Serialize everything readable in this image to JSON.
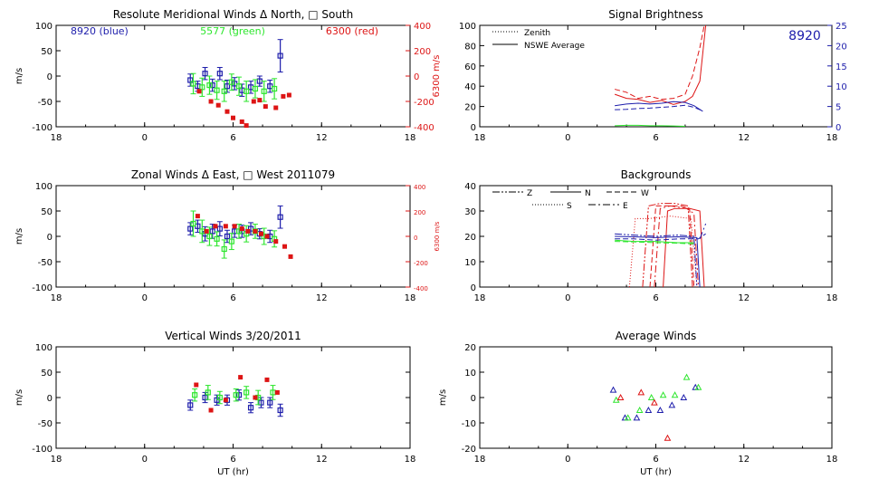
{
  "colors": {
    "blue": "#1d1dab",
    "green": "#2ee62e",
    "red": "#dd1515",
    "black": "#000000"
  },
  "chart_data": [
    {
      "id": "meridional",
      "type": "scatter",
      "title": "Resolute Meridional Winds Δ North, □ South",
      "xlabel": "",
      "ylabel": "m/s",
      "y2label": "6300 m/s",
      "xlim": [
        18,
        42
      ],
      "ylim": [
        -100,
        100
      ],
      "y2lim": [
        -400,
        400
      ],
      "xticks": [
        18,
        24,
        30,
        36,
        42
      ],
      "xticklabels": [
        "18",
        "0",
        "6",
        "12",
        "18"
      ],
      "yticks": [
        -100,
        -50,
        0,
        50,
        100
      ],
      "y2ticks": [
        -400,
        -200,
        0,
        200,
        400
      ],
      "legend_text": [
        {
          "text": "8920 (blue)",
          "color": "blue",
          "pos": "top-left"
        },
        {
          "text": "5577 (green)",
          "color": "green",
          "pos": "top-center"
        },
        {
          "text": "6300 (red)",
          "color": "red",
          "pos": "top-right"
        }
      ],
      "series": [
        {
          "name": "8920 (blue)",
          "color": "blue",
          "axis": "left",
          "style": "errorbar",
          "x": [
            27.1,
            27.6,
            28.1,
            28.6,
            29.1,
            29.6,
            30.1,
            30.6,
            31.2,
            31.8,
            32.5,
            33.2
          ],
          "y": [
            -8,
            -20,
            5,
            -18,
            5,
            -20,
            -15,
            -28,
            -22,
            -10,
            -20,
            40
          ],
          "err": [
            12,
            10,
            12,
            12,
            12,
            12,
            12,
            12,
            12,
            10,
            12,
            32
          ]
        },
        {
          "name": "5577 (green)",
          "color": "green",
          "axis": "left",
          "style": "errorbar",
          "x": [
            27.3,
            27.9,
            28.4,
            28.9,
            29.4,
            29.9,
            30.4,
            30.9,
            31.5,
            32.1,
            32.8
          ],
          "y": [
            -15,
            -22,
            -18,
            -28,
            -30,
            -12,
            -20,
            -30,
            -25,
            -30,
            -25
          ],
          "err": [
            20,
            18,
            18,
            18,
            20,
            16,
            18,
            20,
            18,
            20,
            20
          ]
        },
        {
          "name": "6300 (red)",
          "color": "red",
          "axis": "right",
          "style": "marker",
          "x": [
            27.7,
            28.5,
            29.0,
            29.6,
            30.0,
            30.6,
            30.9,
            31.4,
            31.8,
            32.2,
            32.9,
            33.4,
            33.8
          ],
          "y": [
            -120,
            -200,
            -230,
            -280,
            -330,
            -360,
            -390,
            -200,
            -190,
            -240,
            -250,
            -160,
            -150
          ]
        }
      ]
    },
    {
      "id": "brightness",
      "type": "line",
      "title": "Signal Brightness",
      "xlabel": "",
      "ylabel": "",
      "xlim": [
        18,
        42
      ],
      "ylim": [
        0,
        100
      ],
      "y2lim": [
        0,
        25
      ],
      "xticks": [
        18,
        24,
        30,
        36,
        42
      ],
      "xticklabels": [
        "18",
        "0",
        "6",
        "12",
        "18"
      ],
      "yticks": [
        0,
        20,
        40,
        60,
        80,
        100
      ],
      "y2ticks": [
        0,
        5,
        10,
        15,
        20,
        25
      ],
      "legend": [
        "Zenith",
        "NSWE Average"
      ],
      "annotation": "8920",
      "series": [
        {
          "name": "red solid",
          "color": "red",
          "dash": "",
          "axis": "left",
          "x": [
            27.2,
            28.0,
            28.8,
            29.6,
            30.4,
            31.2,
            32.0,
            32.5,
            33.0,
            33.4
          ],
          "y": [
            32,
            28,
            27,
            24,
            26,
            22,
            25,
            30,
            45,
            100
          ]
        },
        {
          "name": "red dashed",
          "color": "red",
          "dash": "6,3",
          "axis": "left",
          "x": [
            27.2,
            28.0,
            28.8,
            29.6,
            30.4,
            31.2,
            32.0,
            32.5,
            33.0,
            33.3
          ],
          "y": [
            37,
            34,
            28,
            30,
            27,
            28,
            32,
            50,
            78,
            100
          ]
        },
        {
          "name": "blue solid",
          "color": "blue",
          "dash": "",
          "axis": "right",
          "x": [
            27.2,
            28.0,
            28.8,
            29.6,
            30.4,
            31.2,
            32.0,
            32.6,
            33.2
          ],
          "y": [
            5.2,
            5.6,
            5.8,
            5.6,
            5.8,
            6.2,
            6.0,
            5.2,
            3.8
          ]
        },
        {
          "name": "blue dashed",
          "color": "blue",
          "dash": "6,3",
          "axis": "right",
          "x": [
            27.2,
            28.0,
            28.8,
            29.6,
            30.4,
            31.2,
            32.0,
            32.6,
            33.2
          ],
          "y": [
            4.2,
            4.3,
            4.5,
            4.6,
            4.8,
            5.0,
            5.3,
            4.8,
            3.9
          ]
        },
        {
          "name": "green solid",
          "color": "green",
          "dash": "",
          "axis": "left",
          "x": [
            27.2,
            28.0,
            28.8,
            29.6,
            30.4,
            31.2,
            32.0
          ],
          "y": [
            1,
            1.5,
            1.5,
            1,
            1,
            0.8,
            0.5
          ]
        }
      ]
    },
    {
      "id": "zonal",
      "type": "scatter",
      "title": "Zonal Winds Δ East, □ West 2011079",
      "xlabel": "",
      "ylabel": "m/s",
      "y2label": "6300 m/s",
      "xlim": [
        18,
        42
      ],
      "ylim": [
        -100,
        100
      ],
      "y2lim": [
        -400,
        400
      ],
      "xticks": [
        18,
        24,
        30,
        36,
        42
      ],
      "xticklabels": [
        "18",
        "0",
        "6",
        "12",
        "18"
      ],
      "yticks": [
        -100,
        -50,
        0,
        50,
        100
      ],
      "y2ticks": [
        -400,
        -200,
        0,
        200,
        400
      ],
      "series": [
        {
          "name": "8920",
          "color": "blue",
          "axis": "left",
          "style": "errorbar",
          "x": [
            27.1,
            27.6,
            28.1,
            28.6,
            29.1,
            29.6,
            30.1,
            30.6,
            31.2,
            31.8,
            32.5,
            33.2
          ],
          "y": [
            15,
            20,
            5,
            10,
            15,
            0,
            10,
            10,
            15,
            5,
            0,
            38
          ],
          "err": [
            12,
            12,
            14,
            14,
            14,
            12,
            12,
            12,
            12,
            10,
            12,
            22
          ]
        },
        {
          "name": "5577",
          "color": "green",
          "axis": "left",
          "style": "errorbar",
          "x": [
            27.3,
            27.9,
            28.4,
            28.9,
            29.4,
            29.9,
            30.4,
            30.9,
            31.5,
            32.1,
            32.8
          ],
          "y": [
            25,
            10,
            0,
            -5,
            -25,
            -10,
            10,
            5,
            10,
            0,
            -5
          ],
          "err": [
            25,
            22,
            18,
            14,
            18,
            16,
            14,
            16,
            14,
            16,
            16
          ]
        },
        {
          "name": "6300",
          "color": "red",
          "axis": "right",
          "style": "marker",
          "x": [
            27.6,
            28.2,
            28.8,
            29.5,
            30.1,
            30.6,
            31.0,
            31.5,
            31.9,
            32.3,
            32.9,
            33.5,
            33.9
          ],
          "y": [
            160,
            40,
            80,
            80,
            80,
            60,
            40,
            40,
            20,
            0,
            -40,
            -80,
            -160
          ]
        }
      ]
    },
    {
      "id": "backgrounds",
      "type": "line",
      "title": "Backgrounds",
      "xlabel": "",
      "ylabel": "",
      "xlim": [
        18,
        42
      ],
      "ylim": [
        0,
        40
      ],
      "xticks": [
        18,
        24,
        30,
        36,
        42
      ],
      "xticklabels": [
        "18",
        "0",
        "6",
        "12",
        "18"
      ],
      "yticks": [
        0,
        10,
        20,
        30,
        40
      ],
      "legend": [
        {
          "label": "Z",
          "dash": "8,2,2,2,2,2"
        },
        {
          "label": "N",
          "dash": ""
        },
        {
          "label": "W",
          "dash": "6,3"
        },
        {
          "label": "S",
          "dash": "1,2"
        },
        {
          "label": "E",
          "dash": "8,3,2,3"
        }
      ],
      "series": [
        {
          "name": "Z",
          "color": "red",
          "dash": "8,2,2,2,2,2",
          "x": [
            29.1,
            29.5,
            30.3,
            31.3,
            32.2,
            32.5
          ],
          "y": [
            0,
            32,
            33,
            33,
            32,
            0
          ]
        },
        {
          "name": "N",
          "color": "red",
          "dash": "",
          "x": [
            30.5,
            30.8,
            31.3,
            32.3,
            33.0,
            33.3
          ],
          "y": [
            0,
            30,
            31,
            31,
            30,
            0
          ]
        },
        {
          "name": "W",
          "color": "red",
          "dash": "6,3",
          "x": [
            29.6,
            30.0,
            30.8,
            31.7,
            32.3,
            32.6
          ],
          "y": [
            0,
            32,
            32,
            32,
            31,
            0
          ]
        },
        {
          "name": "S",
          "color": "red",
          "dash": "1,2",
          "x": [
            28.2,
            28.6,
            29.5,
            31.0,
            32.4,
            32.8
          ],
          "y": [
            0,
            27,
            27,
            28,
            27,
            0
          ]
        },
        {
          "name": "E",
          "color": "red",
          "dash": "8,3,2,3",
          "x": [
            29.9,
            30.3,
            31.0,
            32.1,
            32.6,
            32.9
          ],
          "y": [
            0,
            31,
            32,
            31,
            29,
            0
          ]
        },
        {
          "name": "blue Z",
          "color": "blue",
          "dash": "8,2,2,2,2,2",
          "x": [
            27.2,
            28.5,
            30.0,
            31.5,
            32.6,
            32.8
          ],
          "y": [
            21,
            20.5,
            20,
            20.5,
            20,
            0
          ]
        },
        {
          "name": "blue N",
          "color": "blue",
          "dash": "",
          "x": [
            27.2,
            28.5,
            30.0,
            31.5,
            32.8,
            33.0
          ],
          "y": [
            20,
            19.8,
            19.5,
            19.8,
            19.5,
            0
          ]
        },
        {
          "name": "blue W",
          "color": "blue",
          "dash": "6,3",
          "x": [
            27.2,
            28.5,
            30.0,
            31.5,
            32.9,
            33.4
          ],
          "y": [
            19,
            19,
            18.5,
            19,
            19,
            21
          ]
        },
        {
          "name": "blue E",
          "color": "blue",
          "dash": "8,3,2,3",
          "x": [
            33.0,
            33.2,
            33.4
          ],
          "y": [
            19,
            22,
            25
          ]
        },
        {
          "name": "green N",
          "color": "green",
          "dash": "",
          "x": [
            27.2,
            28.5,
            30.0,
            31.5,
            32.6
          ],
          "y": [
            18.5,
            18,
            18,
            17.5,
            17.5
          ]
        },
        {
          "name": "green W",
          "color": "green",
          "dash": "6,3",
          "x": [
            27.2,
            28.5,
            30.0,
            31.5,
            32.6
          ],
          "y": [
            18,
            17.8,
            17.5,
            17.3,
            17
          ]
        }
      ]
    },
    {
      "id": "vertical",
      "type": "scatter",
      "title": "Vertical Winds 3/20/2011",
      "xlabel": "UT (hr)",
      "ylabel": "m/s",
      "xlim": [
        18,
        42
      ],
      "ylim": [
        -100,
        100
      ],
      "xticks": [
        18,
        24,
        30,
        36,
        42
      ],
      "xticklabels": [
        "18",
        "0",
        "6",
        "12",
        "18"
      ],
      "yticks": [
        -100,
        -50,
        0,
        50,
        100
      ],
      "series": [
        {
          "name": "8920",
          "color": "blue",
          "axis": "left",
          "style": "errorbar",
          "x": [
            27.1,
            28.1,
            28.9,
            29.6,
            30.4,
            31.2,
            31.9,
            32.5,
            33.2
          ],
          "y": [
            -15,
            0,
            -5,
            -5,
            5,
            -20,
            -10,
            -10,
            -25
          ],
          "err": [
            10,
            10,
            10,
            10,
            10,
            10,
            10,
            10,
            12
          ]
        },
        {
          "name": "5577",
          "color": "green",
          "axis": "left",
          "style": "errorbar",
          "x": [
            27.4,
            28.3,
            29.1,
            30.2,
            30.9,
            31.7,
            32.7
          ],
          "y": [
            5,
            10,
            0,
            5,
            10,
            0,
            10
          ],
          "err": [
            12,
            14,
            12,
            12,
            12,
            14,
            14
          ]
        },
        {
          "name": "6300",
          "color": "red",
          "axis": "left",
          "style": "marker",
          "x": [
            27.5,
            28.5,
            29.5,
            30.5,
            31.5,
            32.3,
            33.0
          ],
          "y": [
            25,
            -25,
            -5,
            40,
            0,
            35,
            10
          ]
        }
      ]
    },
    {
      "id": "average",
      "type": "scatter",
      "title": "Average Winds",
      "xlabel": "UT (hr)",
      "ylabel": "m/s",
      "xlim": [
        18,
        42
      ],
      "ylim": [
        -20,
        20
      ],
      "xticks": [
        18,
        24,
        30,
        36,
        42
      ],
      "xticklabels": [
        "18",
        "0",
        "6",
        "12",
        "18"
      ],
      "yticks": [
        -20,
        -10,
        0,
        10,
        20
      ],
      "series": [
        {
          "name": "blue",
          "color": "blue",
          "axis": "left",
          "style": "triangle",
          "x": [
            27.1,
            27.9,
            28.7,
            29.5,
            30.3,
            31.1,
            31.9,
            32.7
          ],
          "y": [
            3,
            -8,
            -8,
            -5,
            -5,
            -3,
            0,
            4
          ]
        },
        {
          "name": "green",
          "color": "green",
          "axis": "left",
          "style": "triangle",
          "x": [
            27.3,
            28.1,
            28.9,
            29.7,
            30.5,
            31.3,
            32.1,
            32.9
          ],
          "y": [
            -1,
            -8,
            -5,
            0,
            1,
            1,
            8,
            4
          ]
        },
        {
          "name": "red",
          "color": "red",
          "axis": "left",
          "style": "triangle",
          "x": [
            27.6,
            29.0,
            29.9,
            30.8
          ],
          "y": [
            0,
            2,
            -2,
            -16
          ]
        }
      ]
    }
  ]
}
